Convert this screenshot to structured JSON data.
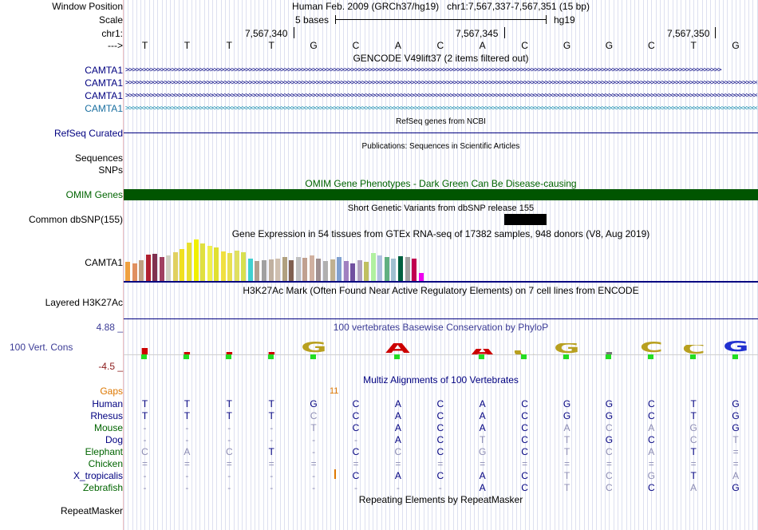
{
  "header": {
    "window_position_label": "Window Position",
    "window_position_value": "Human Feb. 2009 (GRCh37/hg19)   chr1:7,567,337-7,567,351 (15 bp)",
    "scale_label": "Scale",
    "scale_value": "5 bases",
    "scale_db": "hg19",
    "chr_label": "chr1:",
    "coords": [
      "7,567,340",
      "7,567,345",
      "7,567,350"
    ],
    "strand_label": "--->"
  },
  "bases": [
    "T",
    "T",
    "T",
    "T",
    "G",
    "C",
    "A",
    "C",
    "A",
    "C",
    "G",
    "G",
    "C",
    "T",
    "G"
  ],
  "tracks": {
    "gencode": {
      "title": "GENCODE V49lift37 (2 items filtered out)",
      "items": [
        "CAMTA1",
        "CAMTA1",
        "CAMTA1",
        "CAMTA1"
      ]
    },
    "refseq": {
      "label": "RefSeq Curated",
      "title": "RefSeq genes from NCBI"
    },
    "publications": {
      "title": "Publications: Sequences in Scientific Articles"
    },
    "sequences": {
      "label": "Sequences"
    },
    "snps": {
      "label": "SNPs"
    },
    "omim": {
      "label": "OMIM Genes",
      "title": "OMIM Gene Phenotypes - Dark Green Can Be Disease-causing",
      "color": "#005500"
    },
    "dbsnp": {
      "label": "Common dbSNP(155)",
      "title": "Short Genetic Variants from dbSNP release 155"
    },
    "gtex": {
      "label": "CAMTA1",
      "title": "Gene Expression in 54 tissues from GTEx RNA-seq of 17382 samples, 948 donors (V8, Aug 2019)"
    },
    "h3k27ac": {
      "label": "Layered H3K27Ac",
      "title": "H3K27Ac Mark (Often Found Near Active Regulatory Elements) on 7 cell lines from ENCODE"
    },
    "phylop": {
      "label": "100 Vert. Cons",
      "title": "100 vertebrates Basewise Conservation by PhyloP",
      "max": "4.88 _",
      "min": "-4.5 _"
    },
    "multiz": {
      "title": "Multiz Alignments of 100 Vertebrates",
      "gaps_label": "Gaps",
      "gaps_value": "11"
    },
    "repeatmasker": {
      "label": "RepeatMasker",
      "title": "Repeating Elements by RepeatMasker"
    }
  },
  "alignment": {
    "species": [
      "Human",
      "Rhesus",
      "Mouse",
      "Dog",
      "Elephant",
      "Chicken",
      "X_tropicalis",
      "Zebrafish"
    ],
    "rows": [
      [
        "T",
        "T",
        "T",
        "T",
        "G",
        "C",
        "A",
        "C",
        "A",
        "C",
        "G",
        "G",
        "C",
        "T",
        "G"
      ],
      [
        "T",
        "T",
        "T",
        "T",
        "C",
        "C",
        "A",
        "C",
        "A",
        "C",
        "G",
        "G",
        "C",
        "T",
        "G"
      ],
      [
        "-",
        "-",
        "-",
        "-",
        "T",
        "C",
        "A",
        "C",
        "A",
        "C",
        "A",
        "C",
        "A",
        "G",
        "G"
      ],
      [
        "-",
        "-",
        "-",
        "-",
        "-",
        "-",
        "A",
        "C",
        "T",
        "C",
        "T",
        "G",
        "C",
        "C",
        "T"
      ],
      [
        "C",
        "A",
        "C",
        "T",
        "-",
        "C",
        "C",
        "C",
        "G",
        "C",
        "T",
        "C",
        "A",
        "T",
        "="
      ],
      [
        "=",
        "=",
        "=",
        "=",
        "=",
        "=",
        "=",
        "=",
        "=",
        "=",
        "=",
        "=",
        "=",
        "=",
        "="
      ],
      [
        "-",
        "-",
        "-",
        "-",
        "-",
        "C",
        "A",
        "C",
        "A",
        "C",
        "T",
        "C",
        "G",
        "T",
        "A"
      ],
      [
        "-",
        "-",
        "-",
        "-",
        "-",
        "-",
        "-",
        "-",
        "A",
        "C",
        "T",
        "C",
        "C",
        "A",
        "G"
      ]
    ]
  },
  "colors": {
    "navy": "#000080",
    "green": "#006400",
    "orange": "#dd7700",
    "phylop_blue": "#3c3c96",
    "phylop_neg": "#8b1a1a",
    "camta_last": "#1a6fa0"
  }
}
